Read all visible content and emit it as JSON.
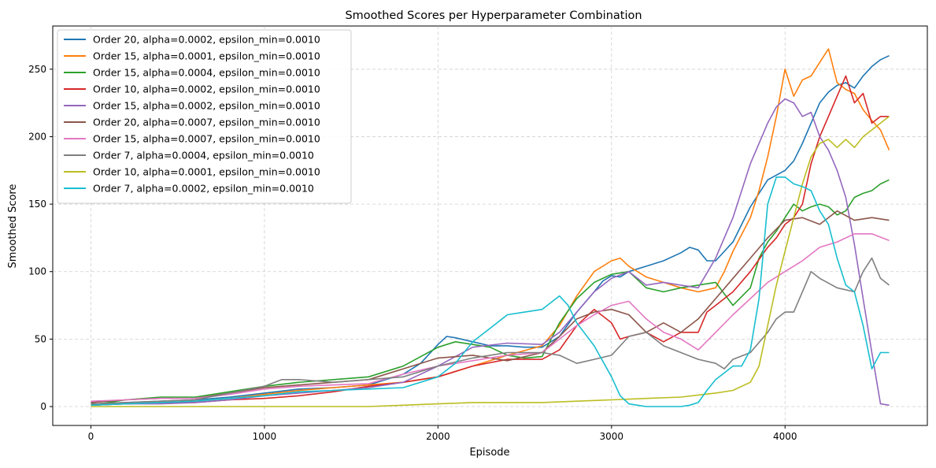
{
  "chart_data": {
    "type": "line",
    "title": "Smoothed Scores per Hyperparameter Combination",
    "xlabel": "Episode",
    "ylabel": "Smoothed Score",
    "xlim": [
      -220,
      4820
    ],
    "ylim": [
      -14,
      282
    ],
    "xticks": [
      0,
      1000,
      2000,
      3000,
      4000
    ],
    "yticks": [
      0,
      50,
      100,
      150,
      200,
      250
    ],
    "grid": true,
    "legend_position": "top-left",
    "series": [
      {
        "name": "Order 20, alpha=0.0002, epsilon_min=0.0010",
        "color": "#1f77b4",
        "x": [
          0,
          200,
          400,
          600,
          800,
          1000,
          1200,
          1400,
          1600,
          1800,
          1900,
          2000,
          2050,
          2100,
          2200,
          2300,
          2400,
          2500,
          2600,
          2700,
          2800,
          2900,
          2950,
          3000,
          3050,
          3100,
          3200,
          3300,
          3400,
          3450,
          3500,
          3550,
          3600,
          3700,
          3800,
          3900,
          4000,
          4050,
          4100,
          4150,
          4200,
          4250,
          4300,
          4350,
          4400,
          4450,
          4500,
          4550,
          4600
        ],
        "y": [
          2,
          3,
          4,
          5,
          7,
          10,
          13,
          14,
          16,
          24,
          32,
          46,
          52,
          51,
          48,
          45,
          45,
          44,
          44,
          52,
          70,
          85,
          93,
          97,
          96,
          100,
          104,
          108,
          114,
          118,
          116,
          108,
          108,
          122,
          148,
          168,
          175,
          182,
          195,
          210,
          225,
          233,
          238,
          240,
          236,
          245,
          252,
          257,
          260
        ]
      },
      {
        "name": "Order 15, alpha=0.0001, epsilon_min=0.0010",
        "color": "#ff7f0e",
        "x": [
          0,
          200,
          400,
          600,
          800,
          1000,
          1200,
          1400,
          1600,
          1800,
          2000,
          2200,
          2400,
          2600,
          2700,
          2800,
          2900,
          3000,
          3050,
          3100,
          3200,
          3300,
          3400,
          3500,
          3600,
          3650,
          3700,
          3800,
          3850,
          3900,
          3950,
          4000,
          4050,
          4100,
          4150,
          4200,
          4250,
          4300,
          4350,
          4400,
          4450,
          4500,
          4550,
          4600
        ],
        "y": [
          2,
          2,
          3,
          4,
          6,
          9,
          12,
          14,
          16,
          18,
          22,
          30,
          38,
          45,
          60,
          82,
          100,
          108,
          110,
          104,
          96,
          92,
          88,
          85,
          88,
          100,
          115,
          140,
          160,
          185,
          215,
          250,
          230,
          242,
          245,
          255,
          265,
          240,
          235,
          232,
          220,
          212,
          205,
          190
        ]
      },
      {
        "name": "Order 15, alpha=0.0004, epsilon_min=0.0010",
        "color": "#2ca02c",
        "x": [
          0,
          200,
          400,
          600,
          800,
          1000,
          1200,
          1400,
          1600,
          1800,
          2000,
          2100,
          2200,
          2300,
          2400,
          2500,
          2600,
          2700,
          2800,
          2900,
          3000,
          3100,
          3200,
          3300,
          3400,
          3500,
          3600,
          3700,
          3800,
          3850,
          3900,
          3950,
          4000,
          4050,
          4100,
          4150,
          4200,
          4250,
          4300,
          4350,
          4400,
          4450,
          4500,
          4550,
          4600
        ],
        "y": [
          1,
          5,
          7,
          7,
          11,
          15,
          18,
          20,
          22,
          30,
          44,
          48,
          46,
          44,
          38,
          36,
          37,
          62,
          80,
          92,
          98,
          100,
          88,
          85,
          88,
          90,
          92,
          75,
          88,
          110,
          122,
          130,
          140,
          150,
          145,
          148,
          150,
          148,
          142,
          145,
          155,
          158,
          160,
          165,
          168
        ]
      },
      {
        "name": "Order 10, alpha=0.0002, epsilon_min=0.0010",
        "color": "#d62728",
        "x": [
          0,
          200,
          400,
          600,
          800,
          1000,
          1200,
          1400,
          1600,
          1800,
          2000,
          2200,
          2400,
          2600,
          2700,
          2800,
          2900,
          3000,
          3050,
          3100,
          3200,
          3300,
          3400,
          3500,
          3550,
          3600,
          3700,
          3800,
          3900,
          3950,
          4000,
          4050,
          4100,
          4150,
          4200,
          4250,
          4300,
          4350,
          4400,
          4450,
          4500,
          4550,
          4600
        ],
        "y": [
          1,
          2,
          3,
          3,
          5,
          6,
          8,
          11,
          15,
          18,
          22,
          30,
          35,
          35,
          42,
          60,
          72,
          62,
          50,
          52,
          55,
          48,
          55,
          55,
          70,
          75,
          85,
          100,
          118,
          125,
          135,
          140,
          150,
          180,
          200,
          215,
          230,
          245,
          225,
          232,
          210,
          215,
          215
        ]
      },
      {
        "name": "Order 15, alpha=0.0002, epsilon_min=0.0010",
        "color": "#9467bd",
        "x": [
          0,
          200,
          400,
          600,
          800,
          1000,
          1200,
          1400,
          1600,
          1800,
          2000,
          2200,
          2400,
          2600,
          2700,
          2800,
          2900,
          3000,
          3100,
          3200,
          3300,
          3400,
          3500,
          3600,
          3700,
          3800,
          3900,
          3950,
          4000,
          4050,
          4100,
          4150,
          4200,
          4250,
          4300,
          4350,
          4400,
          4450,
          4500,
          4550,
          4600
        ],
        "y": [
          1,
          2,
          2,
          3,
          5,
          8,
          10,
          12,
          14,
          18,
          30,
          44,
          47,
          46,
          55,
          70,
          85,
          95,
          100,
          90,
          92,
          90,
          88,
          110,
          140,
          180,
          210,
          222,
          228,
          225,
          215,
          218,
          200,
          190,
          175,
          155,
          120,
          80,
          40,
          2,
          1
        ]
      },
      {
        "name": "Order 20, alpha=0.0007, epsilon_min=0.0010",
        "color": "#8c564b",
        "x": [
          0,
          200,
          400,
          600,
          800,
          1000,
          1200,
          1400,
          1600,
          1800,
          2000,
          2200,
          2400,
          2600,
          2700,
          2800,
          2900,
          3000,
          3100,
          3200,
          3300,
          3400,
          3500,
          3600,
          3700,
          3800,
          3900,
          4000,
          4100,
          4200,
          4300,
          4400,
          4500,
          4600
        ],
        "y": [
          3,
          5,
          6,
          6,
          10,
          14,
          16,
          18,
          20,
          28,
          36,
          38,
          34,
          40,
          52,
          65,
          70,
          72,
          68,
          55,
          62,
          55,
          65,
          80,
          95,
          110,
          125,
          138,
          140,
          135,
          145,
          138,
          140,
          138
        ]
      },
      {
        "name": "Order 15, alpha=0.0007, epsilon_min=0.0010",
        "color": "#e377c2",
        "x": [
          0,
          200,
          400,
          600,
          800,
          1000,
          1200,
          1400,
          1600,
          1800,
          2000,
          2200,
          2400,
          2600,
          2700,
          2800,
          2900,
          3000,
          3100,
          3200,
          3300,
          3400,
          3500,
          3600,
          3700,
          3800,
          3900,
          4000,
          4100,
          4200,
          4300,
          4400,
          4500,
          4600
        ],
        "y": [
          4,
          5,
          6,
          6,
          9,
          13,
          15,
          16,
          17,
          24,
          30,
          34,
          38,
          40,
          50,
          60,
          68,
          75,
          78,
          65,
          55,
          50,
          42,
          55,
          68,
          80,
          92,
          100,
          108,
          118,
          122,
          128,
          128,
          123
        ]
      },
      {
        "name": "Order 7, alpha=0.0004, epsilon_min=0.0010",
        "color": "#7f7f7f",
        "x": [
          0,
          200,
          400,
          600,
          800,
          1000,
          1100,
          1200,
          1400,
          1600,
          1800,
          2000,
          2200,
          2400,
          2600,
          2700,
          2800,
          2900,
          3000,
          3100,
          3200,
          3300,
          3400,
          3500,
          3600,
          3650,
          3700,
          3800,
          3900,
          3950,
          4000,
          4050,
          4100,
          4150,
          4200,
          4300,
          4400,
          4450,
          4500,
          4550,
          4600
        ],
        "y": [
          2,
          3,
          4,
          5,
          10,
          15,
          20,
          20,
          18,
          20,
          22,
          30,
          36,
          40,
          40,
          38,
          32,
          35,
          38,
          52,
          55,
          45,
          40,
          35,
          32,
          28,
          35,
          40,
          55,
          65,
          70,
          70,
          85,
          100,
          95,
          88,
          85,
          100,
          110,
          95,
          90
        ]
      },
      {
        "name": "Order 10, alpha=0.0001, epsilon_min=0.0010",
        "color": "#bcbd22",
        "x": [
          0,
          400,
          800,
          1200,
          1600,
          1800,
          2000,
          2200,
          2400,
          2600,
          2800,
          3000,
          3200,
          3400,
          3600,
          3700,
          3800,
          3850,
          3900,
          3950,
          4000,
          4050,
          4100,
          4150,
          4200,
          4250,
          4300,
          4350,
          4400,
          4450,
          4500,
          4550,
          4600
        ],
        "y": [
          0,
          0,
          0,
          0,
          0,
          1,
          2,
          3,
          3,
          3,
          4,
          5,
          6,
          7,
          10,
          12,
          18,
          30,
          60,
          90,
          115,
          140,
          165,
          185,
          195,
          198,
          192,
          198,
          192,
          200,
          205,
          210,
          215
        ]
      },
      {
        "name": "Order 7, alpha=0.0002, epsilon_min=0.0010",
        "color": "#17becf",
        "x": [
          0,
          200,
          400,
          600,
          800,
          1000,
          1200,
          1400,
          1600,
          1800,
          2000,
          2100,
          2200,
          2300,
          2400,
          2500,
          2600,
          2700,
          2750,
          2800,
          2900,
          3000,
          3050,
          3100,
          3150,
          3200,
          3300,
          3400,
          3450,
          3500,
          3550,
          3600,
          3650,
          3700,
          3750,
          3800,
          3850,
          3900,
          3950,
          4000,
          4050,
          4100,
          4150,
          4200,
          4250,
          4300,
          4350,
          4400,
          4450,
          4500,
          4550,
          4600
        ],
        "y": [
          1,
          2,
          3,
          4,
          6,
          8,
          11,
          12,
          13,
          14,
          22,
          32,
          48,
          58,
          68,
          70,
          72,
          82,
          75,
          62,
          45,
          22,
          8,
          2,
          1,
          0,
          0,
          0,
          1,
          3,
          12,
          20,
          25,
          30,
          30,
          42,
          80,
          150,
          170,
          170,
          165,
          163,
          160,
          145,
          135,
          110,
          90,
          85,
          60,
          28,
          40,
          40
        ]
      }
    ]
  }
}
